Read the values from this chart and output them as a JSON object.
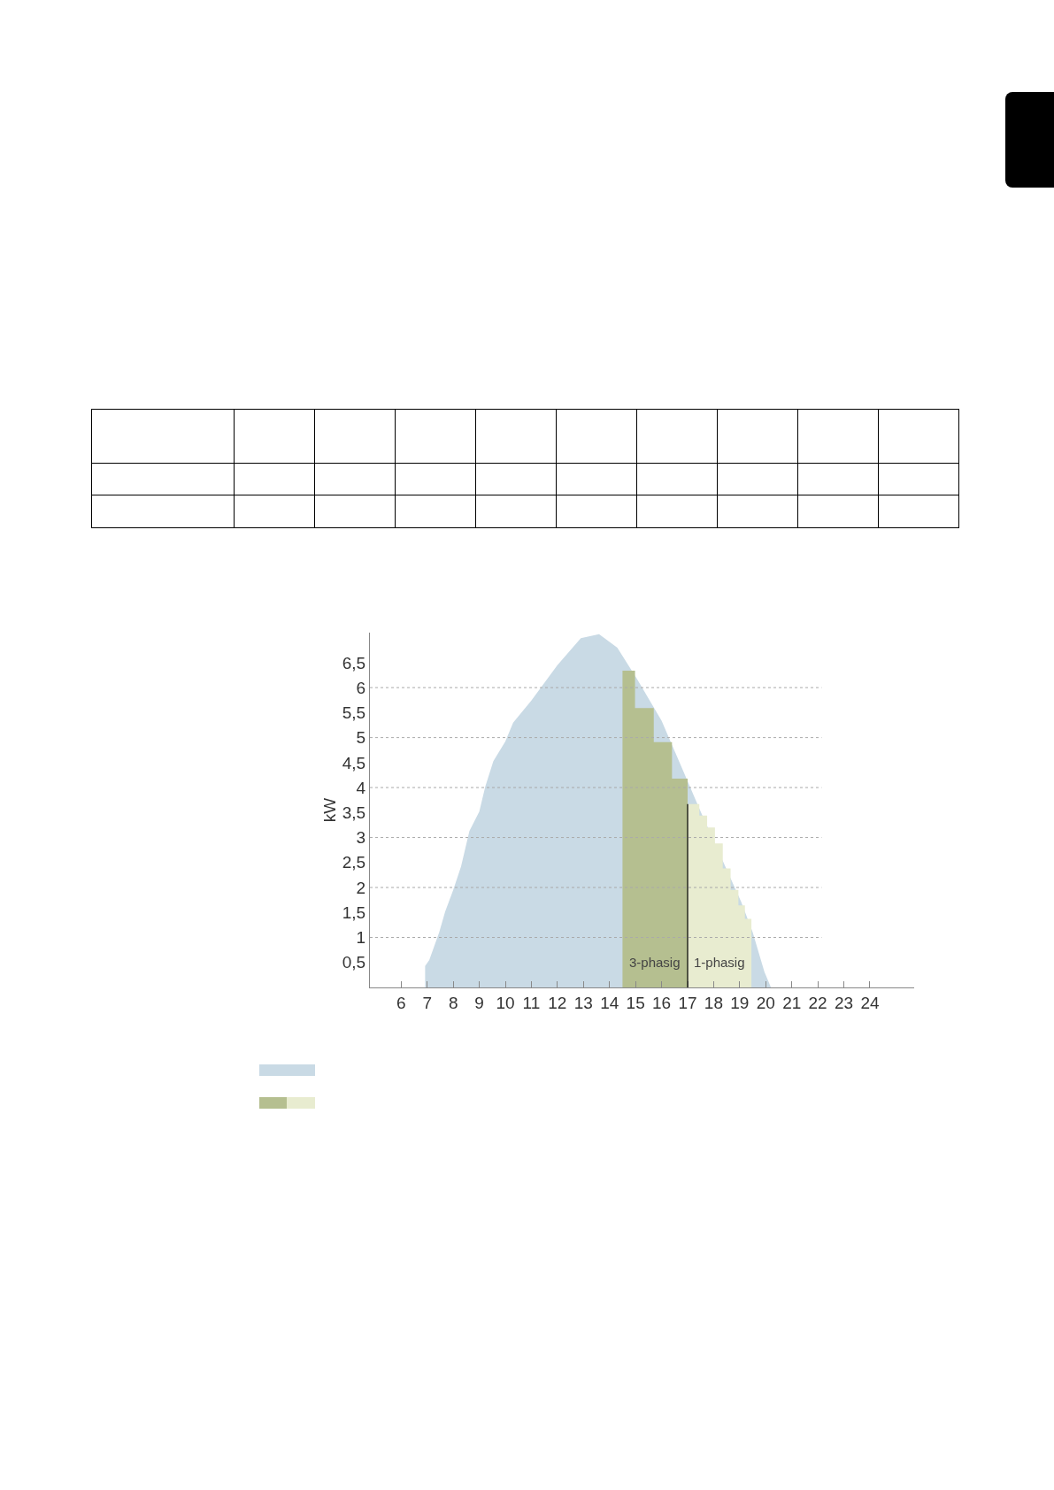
{
  "chart_data": {
    "type": "area",
    "ylabel": "kW",
    "xlim": [
      4.8,
      25.7
    ],
    "xticks": [
      6,
      7,
      8,
      9,
      10,
      11,
      12,
      13,
      14,
      15,
      16,
      17,
      18,
      19,
      20,
      21,
      22,
      23,
      24
    ],
    "ylim": [
      0,
      7.1
    ],
    "yticks": [
      {
        "value": 0.5,
        "label": "0,5"
      },
      1,
      {
        "value": 1.5,
        "label": "1,5"
      },
      2,
      {
        "value": 2.5,
        "label": "2,5"
      },
      3,
      {
        "value": 3.5,
        "label": "3,5"
      },
      4,
      {
        "value": 4.5,
        "label": "4,5"
      },
      5,
      {
        "value": 5.5,
        "label": "5,5"
      },
      6,
      {
        "value": 6.5,
        "label": "6,5"
      }
    ],
    "grid": "y",
    "series": [
      {
        "color": "#c9dae5",
        "x": [
          6.92,
          7.08,
          7.46,
          7.69,
          8.0,
          8.3,
          8.62,
          9.0,
          9.23,
          9.54,
          10.0,
          10.3,
          11.0,
          12.0,
          12.9,
          13.6,
          14.3,
          15.06,
          16.0,
          17.5,
          19.05,
          19.5,
          19.95,
          20.2
        ],
        "values": [
          0.43,
          0.55,
          1.1,
          1.52,
          1.95,
          2.42,
          3.13,
          3.52,
          4.02,
          4.53,
          4.92,
          5.3,
          5.74,
          6.45,
          6.99,
          7.07,
          6.8,
          6.17,
          5.34,
          3.52,
          1.72,
          1.1,
          0.31,
          0
        ]
      },
      {
        "name": "3-phasig",
        "color": "#b5bf90",
        "x": [
          14.5,
          14.98,
          14.98,
          15.7,
          15.7,
          16.4,
          16.4,
          17.0
        ],
        "values": [
          6.34,
          6.34,
          5.59,
          5.59,
          4.91,
          4.91,
          4.18,
          4.18
        ]
      },
      {
        "name": "1-phasig",
        "color": "#e8ecd0",
        "x": [
          17.0,
          17.45,
          17.45,
          17.75,
          17.75,
          18.05,
          18.05,
          18.35,
          18.35,
          18.65,
          18.65,
          18.95,
          18.95,
          19.2,
          19.2,
          19.45
        ],
        "values": [
          3.67,
          3.67,
          3.44,
          3.44,
          3.2,
          3.2,
          2.88,
          2.88,
          2.38,
          2.38,
          1.95,
          1.95,
          1.64,
          1.64,
          1.37,
          1.37
        ]
      }
    ],
    "ref_lines": [
      {
        "axis": "x",
        "value": 17,
        "color": "#000000"
      }
    ]
  }
}
